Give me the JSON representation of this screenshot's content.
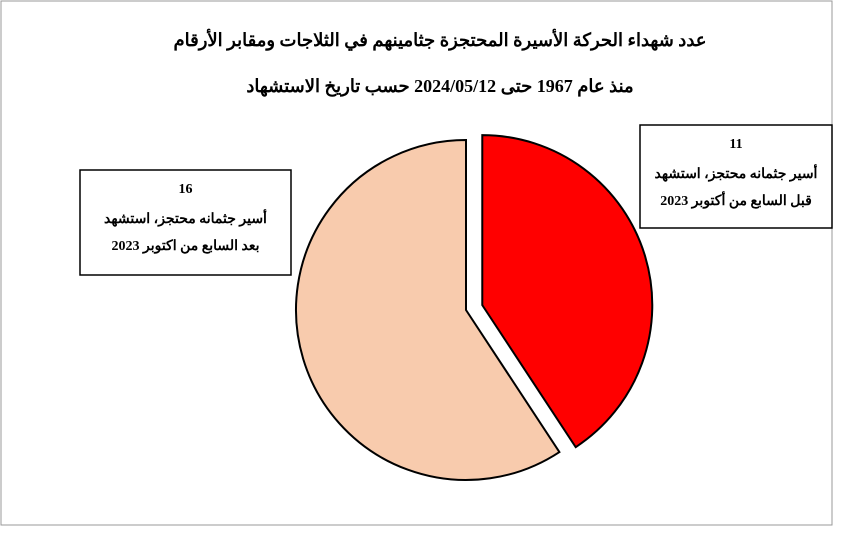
{
  "chart_data": {
    "type": "pie",
    "title": "عدد شهداء الحركة الأسيرة المحتجزة جثامينهم في الثلاجات ومقابر الأرقام",
    "subtitle": "منذ عام 1967 حتى 2024/05/12 حسب تاريخ الاستشهاد",
    "categories": [
      [
        "أسير جثمانه محتجز، استشهد",
        "قبل السابع من أكتوبر 2023"
      ],
      [
        "أسير جثمانه محتجز، استشهد",
        "بعد السابع من اكتوبر 2023"
      ]
    ],
    "values": [
      11,
      16
    ],
    "colors": [
      "#ff0000",
      "#f8cbad"
    ]
  }
}
